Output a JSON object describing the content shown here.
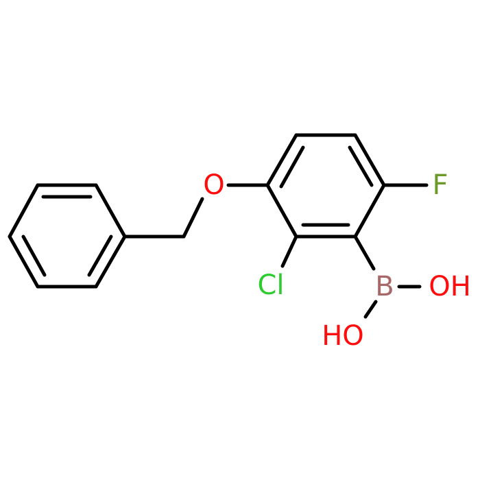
{
  "atoms": [
    {
      "label": "O",
      "color": "#ff0d0d"
    },
    {
      "label": "F",
      "color": "#6b9a2a"
    },
    {
      "label": "Cl",
      "color": "#2ecc2e"
    },
    {
      "label": "B",
      "color": "#a86868"
    },
    {
      "label": "OH",
      "color": "#ff0d0d"
    },
    {
      "label": "HO",
      "color": "#ff0d0d"
    }
  ]
}
